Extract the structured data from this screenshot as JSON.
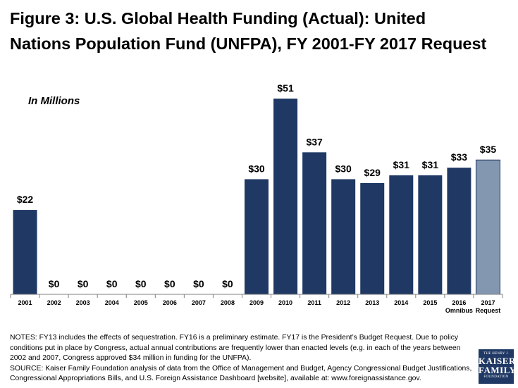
{
  "header": {
    "title_line1": "Figure 3: U.S. Global Health Funding (Actual): United",
    "title_line2": "Nations Population Fund (UNFPA), FY 2001-FY 2017 Request"
  },
  "chart_data": {
    "type": "bar",
    "subtitle": "In Millions",
    "ylabel": "",
    "xlabel": "",
    "ylim": [
      0,
      55
    ],
    "grid": false,
    "categories": [
      "2001",
      "2002",
      "2003",
      "2004",
      "2005",
      "2006",
      "2007",
      "2008",
      "2009",
      "2010",
      "2011",
      "2012",
      "2013",
      "2014",
      "2015",
      "2016",
      "2017"
    ],
    "category_sublabels": [
      "",
      "",
      "",
      "",
      "",
      "",
      "",
      "",
      "",
      "",
      "",
      "",
      "",
      "",
      "",
      "Omnibus",
      "Request"
    ],
    "values": [
      22,
      0,
      0,
      0,
      0,
      0,
      0,
      0,
      30,
      51,
      37,
      30,
      29,
      31,
      31,
      33,
      35
    ],
    "value_labels": [
      "$22",
      "$0",
      "$0",
      "$0",
      "$0",
      "$0",
      "$0",
      "$0",
      "$30",
      "$51",
      "$37",
      "$30",
      "$29",
      "$31",
      "$31",
      "$33",
      "$35"
    ],
    "colors": {
      "actual": "#1f3864",
      "request": "#8497b0"
    }
  },
  "notes": {
    "line1": "NOTES: FY13 includes the effects of sequestration. FY16 is a preliminary estimate. FY17 is the President’s Budget Request. Due to policy",
    "line2": "conditions put in place by Congress, actual annual contributions are frequently lower than enacted levels (e.g. in each of the years between",
    "line3": "2002 and 2007, Congress approved $34 million in funding for the UNFPA).",
    "line4": "SOURCE: Kaiser Family Foundation analysis of data from the Office of Management and Budget, Agency Congressional Budget Justifications,",
    "line5": "Congressional Appropriations Bills, and U.S. Foreign Assistance Dashboard [website], available at: www.foreignassistance.gov."
  },
  "logo": {
    "line1": "THE HENRY J.",
    "line2": "KAISER",
    "line3": "FAMILY",
    "line4": "FOUNDATION"
  }
}
